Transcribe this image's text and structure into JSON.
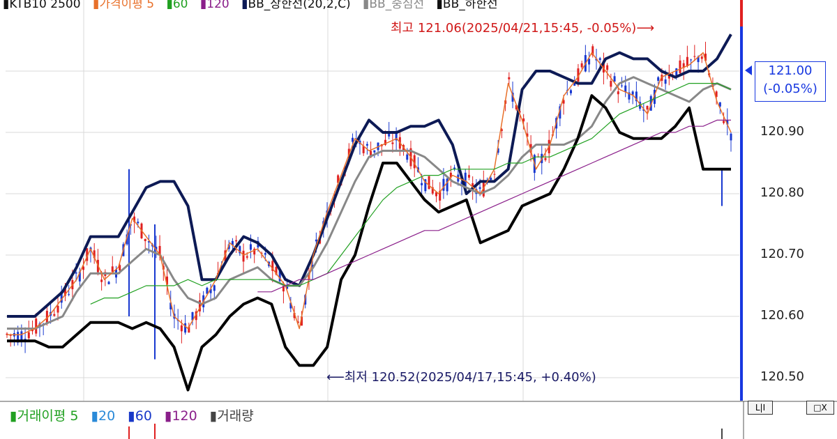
{
  "legend_top": [
    {
      "text": "KTB10 2500",
      "color": "#111111",
      "marker": "#111111"
    },
    {
      "text": "가격이평 5",
      "color": "#e8702a",
      "marker": "#e8702a"
    },
    {
      "text": "60",
      "color": "#20a020",
      "marker": "#20a020"
    },
    {
      "text": "120",
      "color": "#8a1e8a",
      "marker": "#8a1e8a"
    },
    {
      "text": "BB_상한선(20,2,C)",
      "color": "#111111",
      "marker": "#0d1a55"
    },
    {
      "text": "BB_중심선",
      "color": "#888888",
      "marker": "#888888"
    },
    {
      "text": "BB_하한선",
      "color": "#111111",
      "marker": "#111111"
    }
  ],
  "legend_bottom": [
    {
      "text": "거래이평 5",
      "color": "#20a020",
      "marker": "#20a020"
    },
    {
      "text": "20",
      "color": "#2a8ad8",
      "marker": "#2a8ad8"
    },
    {
      "text": "60",
      "color": "#1838c8",
      "marker": "#1838c8"
    },
    {
      "text": "120",
      "color": "#8a1e8a",
      "marker": "#8a1e8a"
    },
    {
      "text": "거래량",
      "color": "#444444",
      "marker": "#444444"
    }
  ],
  "annotations": {
    "high": "최고 121.06(2025/04/21,15:45, -0.05%)⟶",
    "low": "⟵최저 120.52(2025/04/17,15:45, +0.40%)"
  },
  "current_price": {
    "line1": "121.00",
    "line2": "(-0.05%)",
    "color": "#1838e0"
  },
  "controls": {
    "split": "L|I",
    "window": "□X"
  },
  "colors": {
    "up": "#e02020",
    "down": "#1838d0",
    "bb_upper": "#0d1a55",
    "bb_mid": "#888888",
    "bb_lower": "#000000",
    "ma5": "#e8702a",
    "ma60": "#20a020",
    "ma120": "#8a1e8a",
    "grid": "#d8d8d8"
  },
  "chart_data": {
    "type": "line",
    "y_ticks": [
      "121.00",
      "120.90",
      "120.80",
      "120.70",
      "120.60",
      "120.50"
    ],
    "ylim": [
      120.45,
      121.08
    ],
    "grid": true,
    "high": 121.06,
    "low": 120.52,
    "last": 121.0,
    "series": [
      {
        "name": "BB_상한선",
        "values": [
          120.6,
          120.6,
          120.6,
          120.62,
          120.64,
          120.68,
          120.73,
          120.73,
          120.73,
          120.77,
          120.81,
          120.82,
          120.82,
          120.78,
          120.66,
          120.66,
          120.7,
          120.73,
          120.72,
          120.7,
          120.66,
          120.65,
          120.7,
          120.76,
          120.82,
          120.88,
          120.92,
          120.9,
          120.9,
          120.91,
          120.91,
          120.92,
          120.88,
          120.8,
          120.82,
          120.82,
          120.84,
          120.97,
          121.0,
          121.0,
          120.99,
          120.98,
          120.98,
          121.02,
          121.03,
          121.02,
          121.02,
          121.0,
          120.99,
          121.0,
          121.0,
          121.02,
          121.06
        ]
      },
      {
        "name": "BB_중심선",
        "values": [
          120.58,
          120.58,
          120.58,
          120.59,
          120.6,
          120.64,
          120.67,
          120.67,
          120.67,
          120.69,
          120.71,
          120.7,
          120.66,
          120.63,
          120.62,
          120.63,
          120.66,
          120.67,
          120.68,
          120.66,
          120.65,
          120.65,
          120.68,
          120.72,
          120.77,
          120.82,
          120.86,
          120.87,
          120.87,
          120.87,
          120.86,
          120.84,
          120.82,
          120.81,
          120.8,
          120.81,
          120.83,
          120.86,
          120.88,
          120.88,
          120.88,
          120.89,
          120.91,
          120.95,
          120.98,
          120.99,
          120.98,
          120.97,
          120.96,
          120.95,
          120.97,
          120.98,
          120.97
        ]
      },
      {
        "name": "BB_하한선",
        "values": [
          120.56,
          120.56,
          120.56,
          120.55,
          120.55,
          120.57,
          120.59,
          120.59,
          120.59,
          120.58,
          120.59,
          120.58,
          120.55,
          120.48,
          120.55,
          120.57,
          120.6,
          120.62,
          120.63,
          120.62,
          120.55,
          120.52,
          120.52,
          120.55,
          120.66,
          120.7,
          120.78,
          120.85,
          120.85,
          120.82,
          120.79,
          120.77,
          120.78,
          120.79,
          120.72,
          120.73,
          120.74,
          120.78,
          120.79,
          120.8,
          120.84,
          120.89,
          120.96,
          120.94,
          120.9,
          120.89,
          120.89,
          120.89,
          120.91,
          120.94,
          120.84,
          120.84,
          120.84
        ]
      },
      {
        "name": "5",
        "values": [
          120.57,
          120.57,
          120.58,
          120.6,
          120.63,
          120.66,
          120.71,
          120.66,
          120.68,
          120.76,
          120.73,
          120.7,
          120.6,
          120.58,
          120.62,
          120.66,
          120.72,
          120.7,
          120.71,
          120.68,
          120.65,
          120.58,
          120.7,
          120.77,
          120.83,
          120.89,
          120.87,
          120.88,
          120.89,
          120.86,
          120.82,
          120.8,
          120.83,
          120.82,
          120.8,
          120.84,
          120.98,
          120.92,
          120.84,
          120.88,
          120.96,
          120.99,
          121.03,
          121.0,
          120.97,
          120.96,
          120.93,
          120.99,
          121.0,
          121.01,
          121.03,
          120.95,
          120.9
        ]
      },
      {
        "name": "60",
        "values": [
          null,
          null,
          null,
          null,
          null,
          null,
          120.62,
          120.63,
          120.63,
          120.64,
          120.65,
          120.65,
          120.65,
          120.66,
          120.65,
          120.66,
          120.66,
          120.66,
          120.66,
          120.66,
          120.65,
          120.65,
          120.66,
          120.67,
          120.7,
          120.73,
          120.76,
          120.79,
          120.81,
          120.82,
          120.83,
          120.83,
          120.84,
          120.84,
          120.84,
          120.84,
          120.85,
          120.85,
          120.86,
          120.86,
          120.87,
          120.88,
          120.89,
          120.91,
          120.93,
          120.94,
          120.95,
          120.96,
          120.97,
          120.98,
          120.98,
          120.98,
          120.97
        ]
      },
      {
        "name": "120",
        "values": [
          null,
          null,
          null,
          null,
          null,
          null,
          null,
          null,
          null,
          null,
          null,
          null,
          null,
          null,
          null,
          null,
          null,
          null,
          120.64,
          120.64,
          120.65,
          120.66,
          120.66,
          120.67,
          120.68,
          120.69,
          120.7,
          120.71,
          120.72,
          120.73,
          120.74,
          120.74,
          120.75,
          120.76,
          120.77,
          120.78,
          120.79,
          120.8,
          120.81,
          120.82,
          120.83,
          120.84,
          120.85,
          120.86,
          120.87,
          120.88,
          120.89,
          120.9,
          120.9,
          120.91,
          120.91,
          120.92,
          120.92
        ]
      }
    ]
  }
}
